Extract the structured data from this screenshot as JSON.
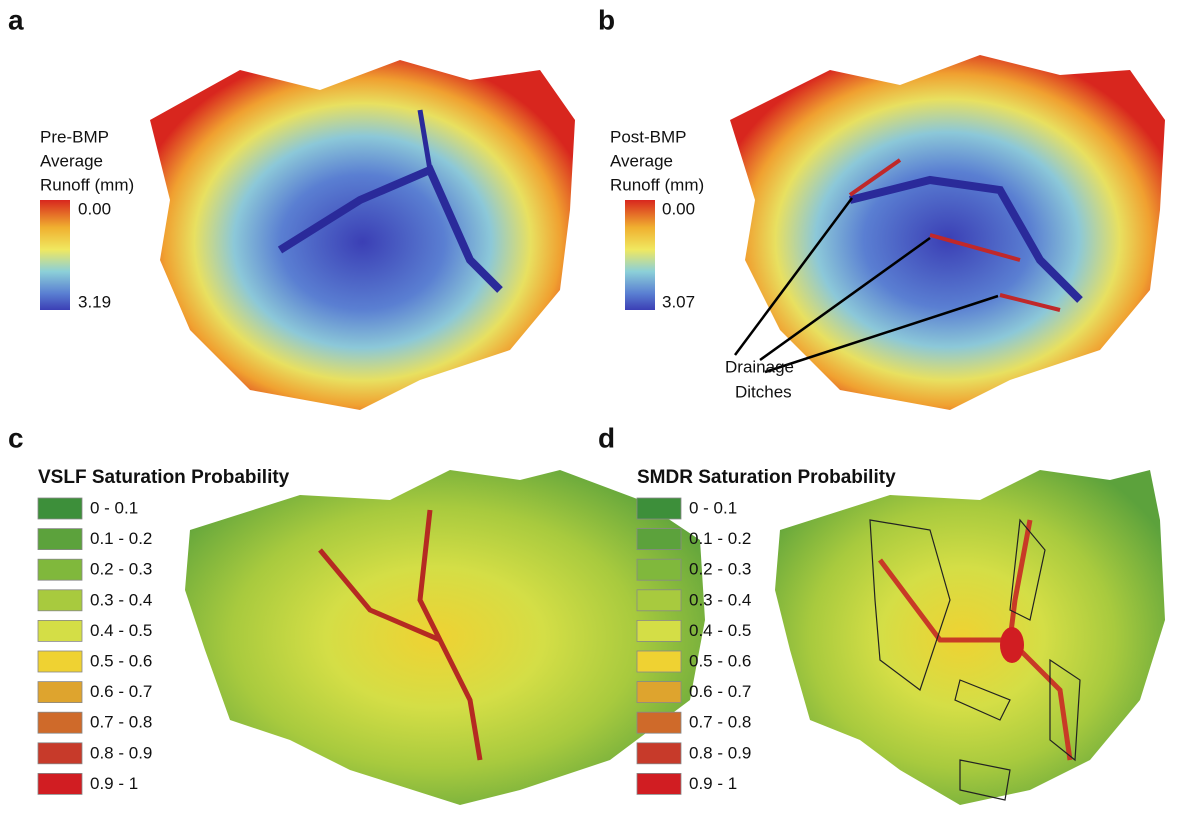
{
  "panels": [
    {
      "letter": "a",
      "legend": {
        "title_lines": [
          "Pre-BMP",
          "Average",
          "Runoff (mm)"
        ],
        "top_label": "0.00",
        "bottom_label": "3.19"
      }
    },
    {
      "letter": "b",
      "legend": {
        "title_lines": [
          "Post-BMP",
          "Average",
          "Runoff (mm)"
        ],
        "top_label": "0.00",
        "bottom_label": "3.07"
      },
      "annotation_lines": [
        "Drainage",
        "Ditches"
      ]
    },
    {
      "letter": "c",
      "legend": {
        "title": "VSLF Saturation Probability",
        "classes": [
          {
            "label": "0 - 0.1",
            "color": "#3d8f3a"
          },
          {
            "label": "0.1 - 0.2",
            "color": "#5ca23c"
          },
          {
            "label": "0.2 - 0.3",
            "color": "#80b83c"
          },
          {
            "label": "0.3 - 0.4",
            "color": "#a8ca3e"
          },
          {
            "label": "0.4 - 0.5",
            "color": "#d4de46"
          },
          {
            "label": "0.5 - 0.6",
            "color": "#efd232"
          },
          {
            "label": "0.6 - 0.7",
            "color": "#dea42e"
          },
          {
            "label": "0.7 - 0.8",
            "color": "#cf6a2a"
          },
          {
            "label": "0.8 - 0.9",
            "color": "#c73a2a"
          },
          {
            "label": "0.9 - 1",
            "color": "#d11d22"
          }
        ]
      }
    },
    {
      "letter": "d",
      "legend": {
        "title": "SMDR Saturation Probability",
        "classes": [
          {
            "label": "0 - 0.1",
            "color": "#3d8f3a"
          },
          {
            "label": "0.1 - 0.2",
            "color": "#5ca23c"
          },
          {
            "label": "0.2 - 0.3",
            "color": "#80b83c"
          },
          {
            "label": "0.3 - 0.4",
            "color": "#a8ca3e"
          },
          {
            "label": "0.4 - 0.5",
            "color": "#d4de46"
          },
          {
            "label": "0.5 - 0.6",
            "color": "#efd232"
          },
          {
            "label": "0.6 - 0.7",
            "color": "#dea42e"
          },
          {
            "label": "0.7 - 0.8",
            "color": "#cf6a2a"
          },
          {
            "label": "0.8 - 0.9",
            "color": "#c73a2a"
          },
          {
            "label": "0.9 - 1",
            "color": "#d11d22"
          }
        ]
      }
    }
  ]
}
